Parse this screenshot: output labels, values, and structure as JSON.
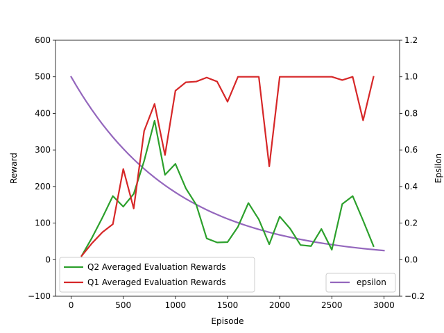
{
  "chart_data": {
    "type": "line",
    "xlabel": "Episode",
    "ylabel_left": "Reward",
    "ylabel_right": "Epsilon",
    "xlim": [
      -150,
      3150
    ],
    "ylim_left": [
      -100,
      600
    ],
    "ylim_right": [
      -0.2,
      1.2
    ],
    "x_ticks": [
      0,
      500,
      1000,
      1500,
      2000,
      2500,
      3000
    ],
    "y_left_ticks": [
      -100,
      0,
      100,
      200,
      300,
      400,
      500,
      600
    ],
    "y_right_ticks": [
      "-0.2",
      "0.0",
      "0.2",
      "0.4",
      "0.6",
      "0.8",
      "1.0",
      "1.2"
    ],
    "grid": false,
    "series": [
      {
        "name": "Q2 Averaged Evaluation Rewards",
        "axis": "left",
        "color": "#2ca02c",
        "x": [
          100,
          200,
          300,
          400,
          500,
          600,
          700,
          800,
          900,
          1000,
          1100,
          1200,
          1300,
          1400,
          1500,
          1600,
          1700,
          1800,
          1900,
          2000,
          2100,
          2200,
          2300,
          2400,
          2500,
          2600,
          2700,
          2800,
          2900
        ],
        "values": [
          10,
          60,
          115,
          174,
          145,
          180,
          270,
          380,
          232,
          262,
          195,
          150,
          58,
          47,
          48,
          90,
          155,
          110,
          42,
          118,
          85,
          40,
          37,
          84,
          27,
          152,
          174,
          107,
          37
        ]
      },
      {
        "name": "Q1 Averaged Evaluation Rewards",
        "axis": "left",
        "color": "#d62728",
        "x": [
          100,
          200,
          300,
          400,
          500,
          600,
          700,
          800,
          900,
          1000,
          1100,
          1200,
          1300,
          1400,
          1500,
          1600,
          1700,
          1800,
          1900,
          2000,
          2100,
          2200,
          2300,
          2400,
          2500,
          2600,
          2700,
          2800,
          2900
        ],
        "values": [
          10,
          45,
          75,
          97,
          248,
          140,
          352,
          426,
          286,
          462,
          485,
          487,
          498,
          487,
          432,
          500,
          500,
          500,
          255,
          500,
          500,
          500,
          500,
          500,
          500,
          491,
          500,
          381,
          500
        ]
      },
      {
        "name": "epsilon",
        "axis": "right",
        "color": "#9467bd",
        "formula": "exp(-0.001*x)",
        "x_range": [
          0,
          3000
        ],
        "samples": 61
      }
    ],
    "legends": [
      {
        "position": "lower-left",
        "entries": [
          "Q2 Averaged Evaluation Rewards",
          "Q1 Averaged Evaluation Rewards"
        ]
      },
      {
        "position": "lower-right",
        "entries": [
          "epsilon"
        ]
      }
    ]
  }
}
